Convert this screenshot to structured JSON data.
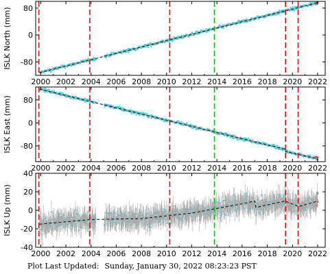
{
  "colors": {
    "data_point": "#00e5ff",
    "error_bar": "#a9a9a9",
    "model_line": "#000000",
    "event_red": "#dd1111",
    "event_green": "#11bb11",
    "recent_point": "#ee2222"
  },
  "footer": {
    "label": "Plot Last Updated:",
    "value": "Sunday, January 30, 2022 08:23:23 PST"
  },
  "chart_data": [
    {
      "type": "scatter",
      "title": "",
      "ylabel": "ISLK North (mm)",
      "xlabel": "",
      "xlim": [
        1999.6,
        2022.6
      ],
      "ylim": [
        -120,
        100
      ],
      "x_ticks": [
        2000,
        2002,
        2004,
        2006,
        2008,
        2010,
        2012,
        2014,
        2016,
        2018,
        2020,
        2022
      ],
      "y_ticks": [
        80,
        0,
        -80
      ],
      "events_red": [
        1999.85,
        2003.9,
        2010.25,
        2019.45,
        2020.45
      ],
      "events_green": [
        2013.8
      ],
      "gaps": [
        [
          2004.4,
          2005.05
        ]
      ],
      "data_span": [
        1999.9,
        2022.0
      ],
      "model": [
        [
          1999.9,
          -112
        ],
        [
          2022.0,
          96
        ]
      ],
      "scatter_noise": 3.5,
      "error_bar": 2.5,
      "grid": false,
      "legend": "none"
    },
    {
      "type": "scatter",
      "title": "",
      "ylabel": "ISLK East (mm)",
      "xlabel": "",
      "xlim": [
        1999.6,
        2022.6
      ],
      "ylim": [
        -135,
        125
      ],
      "x_ticks": [
        2000,
        2002,
        2004,
        2006,
        2008,
        2010,
        2012,
        2014,
        2016,
        2018,
        2020,
        2022
      ],
      "y_ticks": [
        80,
        0,
        -80
      ],
      "events_red": [
        1999.85,
        2003.9,
        2010.25,
        2019.45,
        2020.45
      ],
      "events_green": [
        2013.8
      ],
      "gaps": [
        [
          2004.4,
          2005.05
        ]
      ],
      "data_span": [
        1999.9,
        2022.0
      ],
      "model": [
        [
          1999.9,
          118
        ],
        [
          2019.45,
          -92
        ],
        [
          2019.46,
          -100
        ],
        [
          2022.0,
          -125
        ]
      ],
      "scatter_noise": 4,
      "error_bar": 3,
      "grid": false,
      "legend": "none"
    },
    {
      "type": "scatter",
      "title": "",
      "ylabel": "ISLK Up (mm)",
      "xlabel": "",
      "xlim": [
        1999.6,
        2022.6
      ],
      "ylim": [
        -40,
        40
      ],
      "x_ticks": [
        2000,
        2002,
        2004,
        2006,
        2008,
        2010,
        2012,
        2014,
        2016,
        2018,
        2020,
        2022
      ],
      "y_ticks": [
        40,
        20,
        0,
        -20,
        -40
      ],
      "events_red": [
        1999.85,
        2003.9,
        2010.25,
        2019.45,
        2020.45
      ],
      "events_green": [
        2013.8
      ],
      "gaps": [
        [
          2004.4,
          2005.05
        ]
      ],
      "data_span": [
        1999.9,
        2022.0
      ],
      "model": [
        [
          1999.9,
          -15
        ],
        [
          2004.0,
          -10
        ],
        [
          2008.0,
          -9
        ],
        [
          2012.0,
          -3
        ],
        [
          2014.0,
          2
        ],
        [
          2016.0,
          7
        ],
        [
          2017.0,
          10
        ],
        [
          2017.1,
          3
        ],
        [
          2019.4,
          10
        ],
        [
          2020.5,
          4
        ],
        [
          2022.0,
          10
        ]
      ],
      "scatter_noise": 6,
      "error_bar": 9,
      "grid": false,
      "legend": "none"
    }
  ]
}
